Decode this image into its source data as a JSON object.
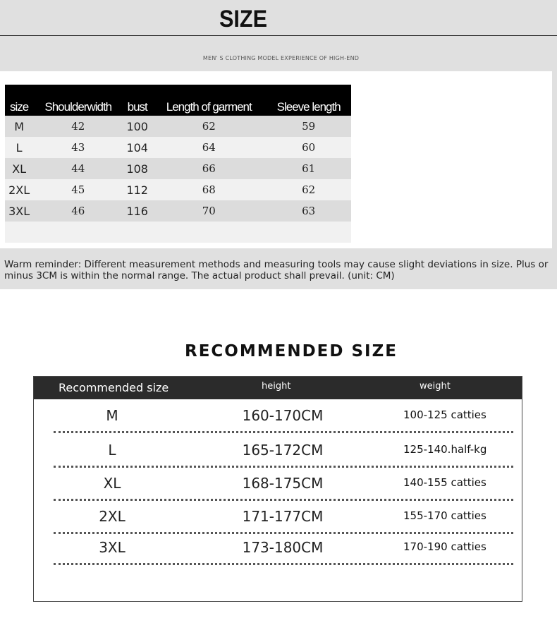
{
  "header": {
    "title": "SIZE",
    "subtitle": "MEN' S CLOTHING MODEL EXPERIENCE OF HIGH-END"
  },
  "size_table": {
    "columns": [
      "size",
      "Shoulderwidth",
      "bust",
      "Length of garment",
      "Sleeve length"
    ],
    "rows": [
      [
        "M",
        "42",
        "100",
        "62",
        "59"
      ],
      [
        "L",
        "43",
        "104",
        "64",
        "60"
      ],
      [
        "XL",
        "44",
        "108",
        "66",
        "61"
      ],
      [
        "2XL",
        "45",
        "112",
        "68",
        "62"
      ],
      [
        "3XL",
        "46",
        "116",
        "70",
        "63"
      ]
    ]
  },
  "reminder": "Warm reminder: Different measurement methods and measuring tools may cause slight deviations in size. Plus or minus 3CM is within the normal range. The actual product shall prevail. (unit: CM)",
  "recommended": {
    "title": "RECOMMENDED SIZE",
    "columns": [
      "Recommended size",
      "height",
      "weight"
    ],
    "rows": [
      [
        "M",
        "160-170CM",
        "100-125 catties"
      ],
      [
        "L",
        "165-172CM",
        "125-140.half-kg"
      ],
      [
        "XL",
        "168-175CM",
        "140-155 catties"
      ],
      [
        "2XL",
        "171-177CM",
        "155-170 catties"
      ],
      [
        "3XL",
        "173-180CM",
        "170-190 catties"
      ]
    ]
  }
}
